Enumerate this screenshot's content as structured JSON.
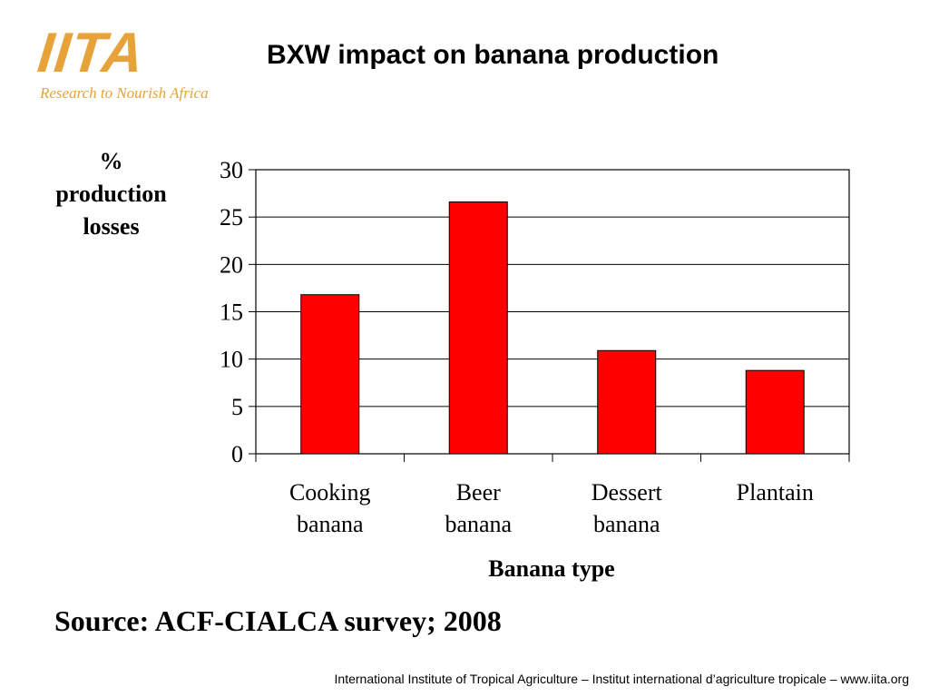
{
  "logo": {
    "mark": "IITA",
    "tagline": "Research to Nourish Africa"
  },
  "slide": {
    "title": "BXW impact on banana production",
    "source": "Source: ACF-CIALCA survey; 2008",
    "footer": "International Institute of Tropical Agriculture – Institut international d’agriculture tropicale – www.iita.org"
  },
  "colors": {
    "bar": "#ff0000",
    "logo": "#e8a23a"
  },
  "chart_data": {
    "type": "bar",
    "title": "BXW impact on banana production",
    "ylabel_lines": [
      "%",
      "production",
      "losses"
    ],
    "xlabel": "Banana type",
    "categories": [
      [
        "Cooking",
        "banana"
      ],
      [
        "Beer",
        "banana"
      ],
      [
        "Dessert",
        "banana"
      ],
      [
        "Plantain"
      ]
    ],
    "values": [
      16.8,
      26.6,
      10.9,
      8.8
    ],
    "ylim": [
      0,
      30
    ],
    "yticks": [
      0,
      5,
      10,
      15,
      20,
      25,
      30
    ],
    "grid": true,
    "legend": "none"
  }
}
